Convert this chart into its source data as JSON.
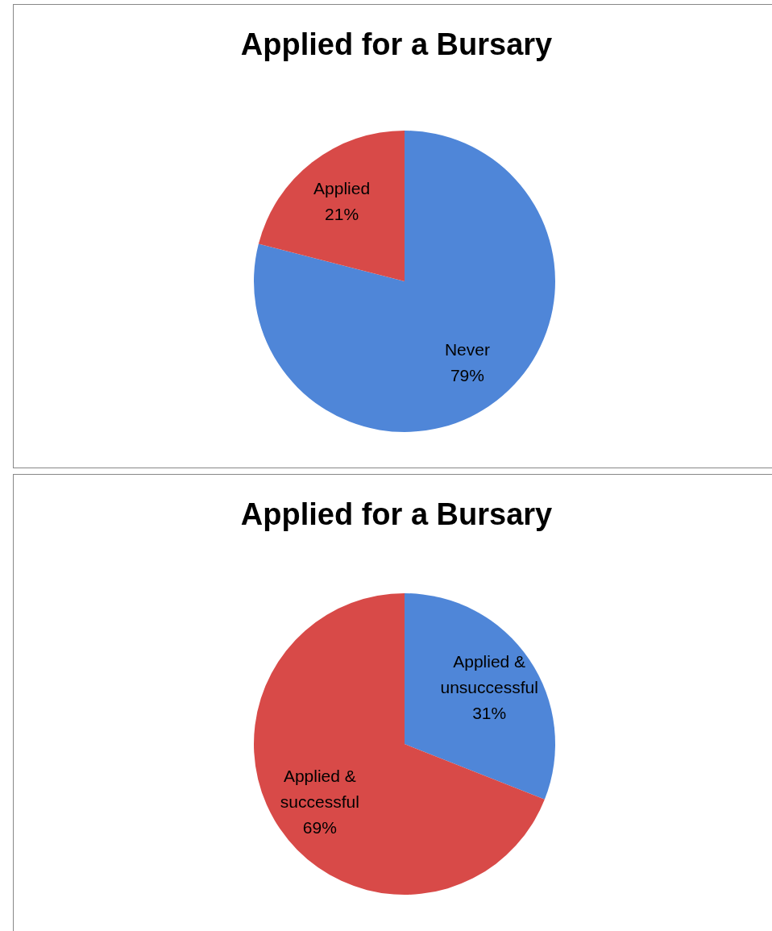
{
  "chart_data": [
    {
      "type": "pie",
      "title": "Applied for a Bursary",
      "categories": [
        "Never",
        "Applied"
      ],
      "values": [
        79,
        21
      ],
      "value_labels": [
        "79%",
        "21%"
      ],
      "colors": [
        "#4f86d8",
        "#d84a48"
      ]
    },
    {
      "type": "pie",
      "title": "Applied for a Bursary",
      "categories": [
        "Applied & unsuccessful",
        "Applied & successful"
      ],
      "values": [
        31,
        69
      ],
      "value_labels": [
        "31%",
        "69%"
      ],
      "colors": [
        "#4f86d8",
        "#d84a48"
      ]
    }
  ]
}
